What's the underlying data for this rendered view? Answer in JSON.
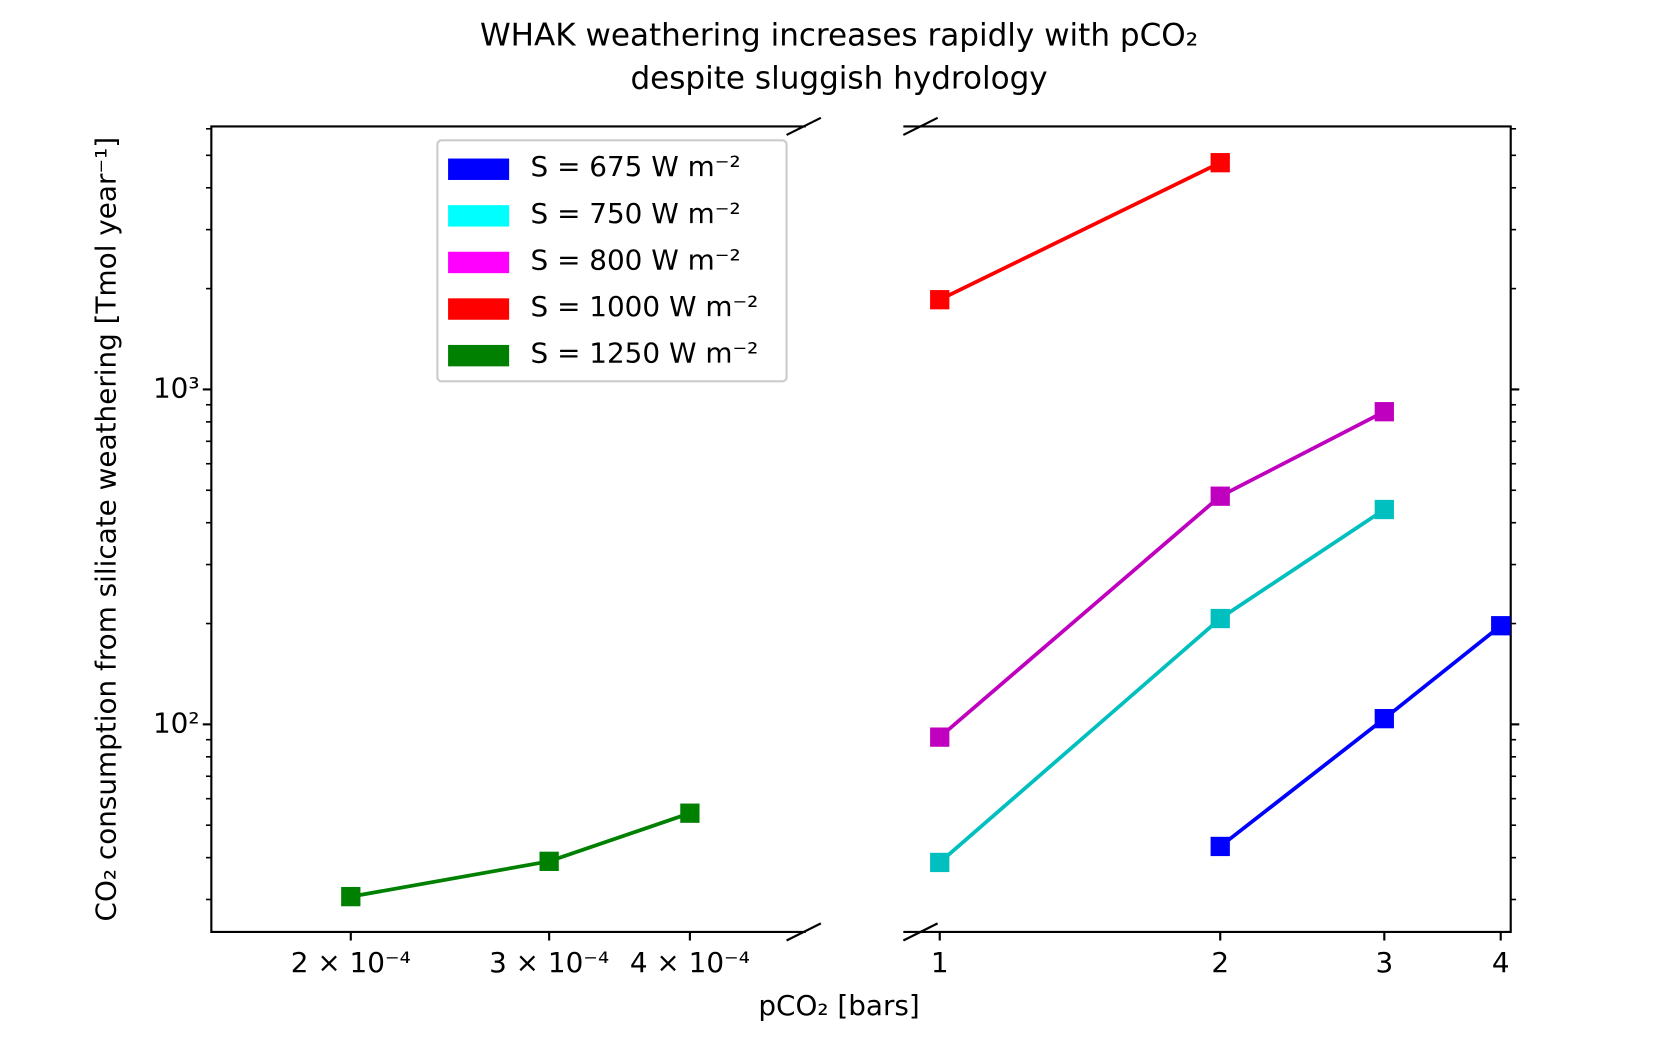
{
  "chart_data": {
    "type": "line",
    "title": "WHAK weathering increases rapidly with pCO₂",
    "subtitle": "despite sluggish hydrology",
    "xlabel": "pCO₂ [bars]",
    "ylabel": "CO₂ consumption from silicate weathering [Tmol year⁻¹]",
    "log_x": true,
    "log_y": true,
    "ylim": [
      24,
      6100
    ],
    "yticks": [
      {
        "value": 100,
        "label": "10²"
      },
      {
        "value": 1000,
        "label": "10³"
      }
    ],
    "yminorticks": [
      30,
      40,
      50,
      60,
      70,
      80,
      90,
      200,
      300,
      400,
      500,
      600,
      700,
      800,
      900,
      2000,
      3000,
      4000,
      5000,
      6000
    ],
    "legend": "upper left",
    "panels": [
      {
        "xlim": [
          0.0001504,
          0.000507
        ],
        "xticks": [
          {
            "value": 0.0002,
            "label": "2 × 10⁻⁴"
          },
          {
            "value": 0.0003,
            "label": "3 × 10⁻⁴"
          },
          {
            "value": 0.0004,
            "label": "4 × 10⁻⁴"
          }
        ]
      },
      {
        "xlim": [
          0.914,
          4.1
        ],
        "xticks": [
          1,
          2,
          3,
          4
        ]
      }
    ],
    "series": [
      {
        "name": "S = 675 W m⁻²",
        "color": "#0000ff",
        "patch_color": "#0000ff",
        "panel": 1,
        "x": [
          2,
          3,
          4
        ],
        "values": [
          43.2,
          104,
          197
        ]
      },
      {
        "name": "S = 750 W m⁻²",
        "color": "#00bfbf",
        "patch_color": "#00ffff",
        "panel": 1,
        "x": [
          1,
          2,
          3
        ],
        "values": [
          38.7,
          207,
          438
        ]
      },
      {
        "name": "S = 800 W m⁻²",
        "color": "#bf00bf",
        "patch_color": "#ff00ff",
        "panel": 1,
        "x": [
          1,
          2,
          3
        ],
        "values": [
          91.6,
          480,
          858
        ]
      },
      {
        "name": "S = 1000 W m⁻²",
        "color": "#ff0000",
        "patch_color": "#ff0000",
        "panel": 1,
        "x": [
          1,
          2
        ],
        "values": [
          1853,
          4753
        ]
      },
      {
        "name": "S = 1250 W m⁻²",
        "color": "#008000",
        "patch_color": "#008000",
        "panel": 0,
        "x": [
          0.0002,
          0.0003,
          0.0004
        ],
        "values": [
          30.6,
          39,
          54.3
        ]
      }
    ]
  }
}
